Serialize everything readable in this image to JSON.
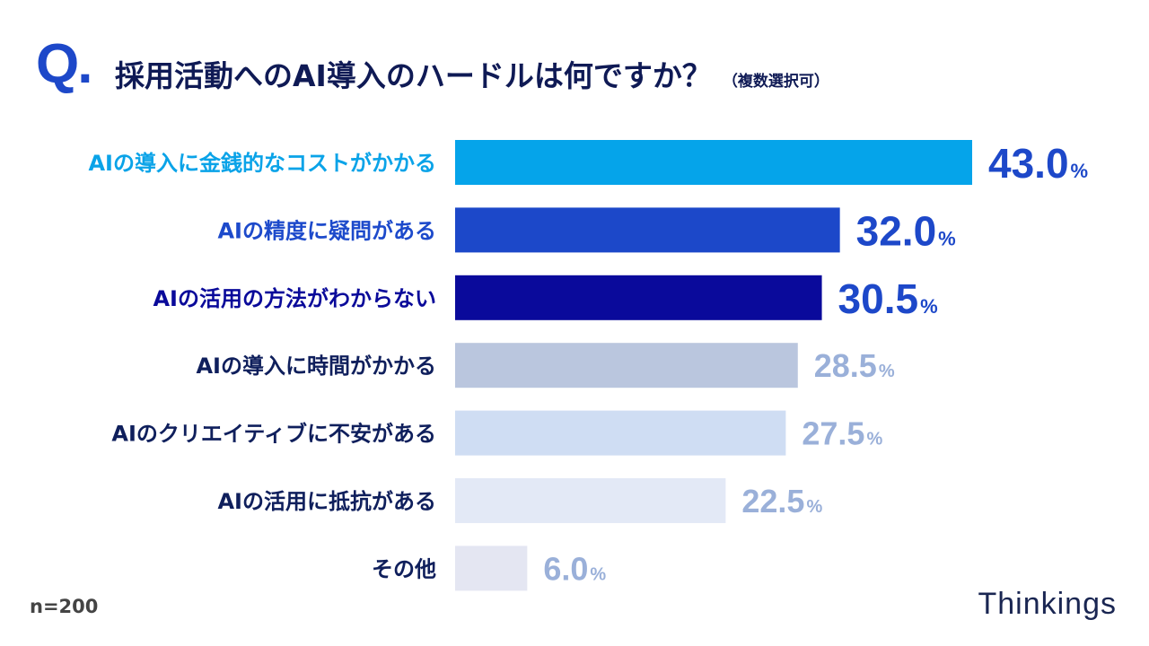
{
  "header": {
    "q_mark": "Q.",
    "title": "採用活動へのAI導入のハードルは何ですか？",
    "note": "（複数選択可）"
  },
  "footer": {
    "sample": "n=200",
    "logo": "Thinkings"
  },
  "chart_data": {
    "type": "bar",
    "orientation": "horizontal",
    "categories": [
      "AIの導入に金銭的なコストがかかる",
      "AIの精度に疑問がある",
      "AIの活用の方法がわからない",
      "AIの導入に時間がかかる",
      "AIのクリエイティブに不安がある",
      "AIの活用に抵抗がある",
      "その他"
    ],
    "values": [
      43.0,
      32.0,
      30.5,
      28.5,
      27.5,
      22.5,
      6.0
    ],
    "unit": "%",
    "xlim": [
      0,
      43
    ],
    "grid": false,
    "bar_colors": [
      "#05a4ea",
      "#1c48c9",
      "#0a0a9b",
      "#bac6de",
      "#cfddf3",
      "#e3e9f6",
      "#e4e6f2"
    ],
    "label_colors": [
      "#0aa3e8",
      "#1d4acb",
      "#0a0a9a",
      "#0f1f5c",
      "#0f1f5c",
      "#0f1f5c",
      "#0f1f5c"
    ],
    "value_colors": [
      "#1d48c9",
      "#1d48c9",
      "#1d48c9",
      "#9ab0d9",
      "#9ab0d9",
      "#9ab0d9",
      "#9ab0d9"
    ]
  }
}
